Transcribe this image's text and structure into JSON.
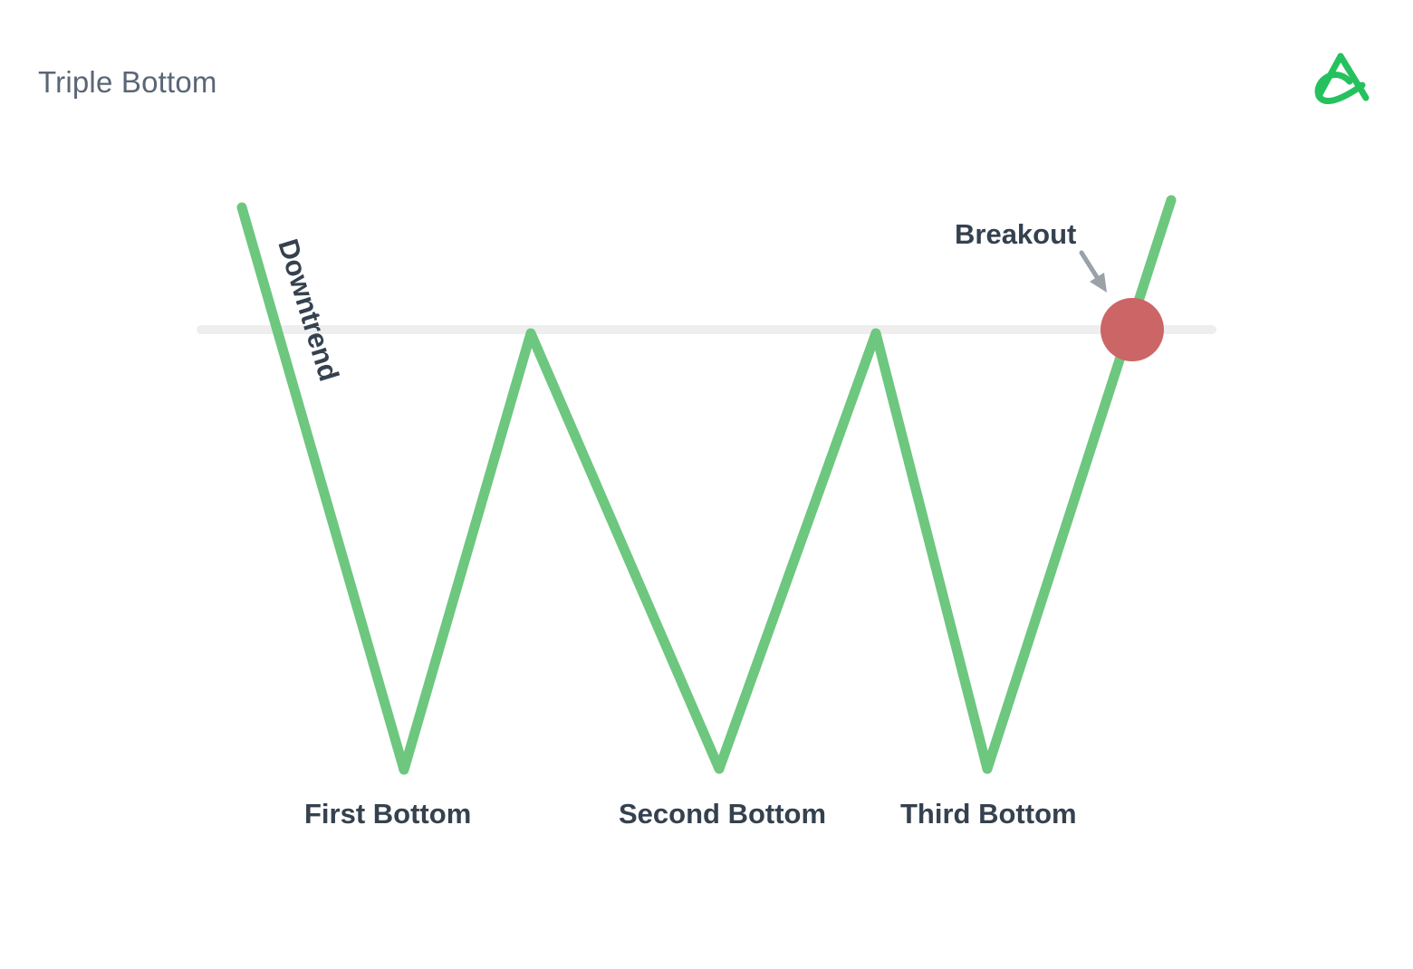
{
  "title": "Triple Bottom",
  "logo": {
    "icon": "brand-logo-icon",
    "color": "#26c15f"
  },
  "colors": {
    "price_line": "#6dc77e",
    "resistance_line": "#eeeeee",
    "breakout_point": "#cc6566",
    "arrow": "#9aa1a9",
    "label_text": "#35414f",
    "title_text": "#5a6676"
  },
  "labels": {
    "downtrend": "Downtrend",
    "breakout": "Breakout",
    "first_bottom": "First Bottom",
    "second_bottom": "Second Bottom",
    "third_bottom": "Third Bottom"
  }
}
